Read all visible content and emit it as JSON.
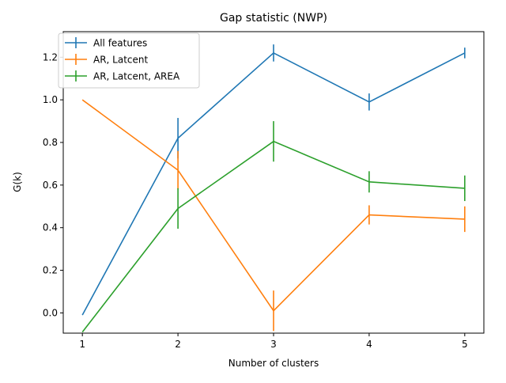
{
  "chart_data": {
    "type": "line",
    "title": "Gap statistic (NWP)",
    "xlabel": "Number of clusters",
    "ylabel": "G(k)",
    "x": [
      1,
      2,
      3,
      4,
      5
    ],
    "xlim": [
      0.8,
      5.2
    ],
    "ylim": [
      -0.095,
      1.32
    ],
    "xticks": [
      1,
      2,
      3,
      4,
      5
    ],
    "yticks": [
      0.0,
      0.2,
      0.4,
      0.6,
      0.8,
      1.0,
      1.2
    ],
    "ytick_labels": [
      "0.0",
      "0.2",
      "0.4",
      "0.6",
      "0.8",
      "1.0",
      "1.2"
    ],
    "grid": false,
    "legend_position": "top-left",
    "series": [
      {
        "name": "All features",
        "color": "#1f77b4",
        "values": [
          -0.01,
          0.82,
          1.22,
          0.99,
          1.22
        ],
        "errors": [
          0.0,
          0.095,
          0.04,
          0.04,
          0.025
        ]
      },
      {
        "name": "AR, Latcent",
        "color": "#ff7f0e",
        "values": [
          1.0,
          0.67,
          0.01,
          0.46,
          0.44
        ],
        "errors": [
          0.0,
          0.09,
          0.095,
          0.045,
          0.06
        ]
      },
      {
        "name": "AR, Latcent, AREA",
        "color": "#2ca02c",
        "values": [
          -0.09,
          0.49,
          0.805,
          0.615,
          0.585
        ],
        "errors": [
          0.0,
          0.095,
          0.095,
          0.05,
          0.06
        ]
      }
    ]
  }
}
